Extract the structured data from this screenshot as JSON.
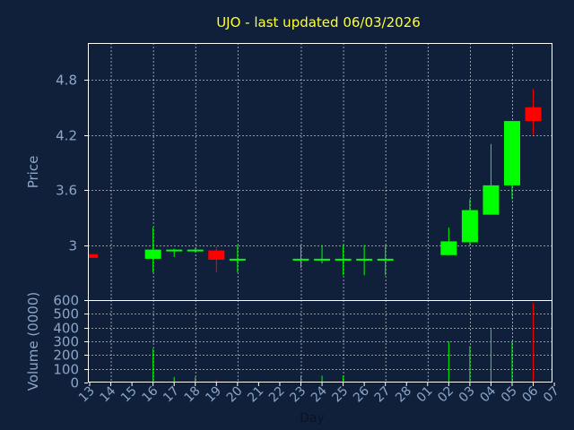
{
  "chart_data": [
    {
      "type": "candlestick",
      "title": "UJO - last updated 06/03/2026",
      "ylabel": "Price",
      "xlabel": "Day",
      "ylim": [
        2.4,
        5.2
      ],
      "yticks": [
        "3",
        "3.6",
        "4.2",
        "4.8"
      ],
      "ytick_values": [
        3.0,
        3.6,
        4.2,
        4.8
      ],
      "grid": true,
      "categories": [
        "13",
        "14",
        "15",
        "16",
        "17",
        "18",
        "19",
        "20",
        "21",
        "22",
        "23",
        "24",
        "25",
        "26",
        "27",
        "28",
        "01",
        "02",
        "03",
        "04",
        "05",
        "06",
        "07"
      ],
      "candles": [
        {
          "day": "13",
          "open": 2.9,
          "high": 2.9,
          "low": 2.86,
          "close": 2.86,
          "direction": "down"
        },
        {
          "day": "16",
          "open": 2.85,
          "high": 3.19,
          "low": 2.7,
          "close": 2.95,
          "direction": "up"
        },
        {
          "day": "17",
          "open": 2.94,
          "high": 2.96,
          "low": 2.87,
          "close": 2.95,
          "direction": "up"
        },
        {
          "day": "18",
          "open": 2.94,
          "high": 2.97,
          "low": 2.92,
          "close": 2.95,
          "direction": "up"
        },
        {
          "day": "19",
          "open": 2.94,
          "high": 2.98,
          "low": 2.7,
          "close": 2.84,
          "direction": "down"
        },
        {
          "day": "20",
          "open": 2.84,
          "high": 3.0,
          "low": 2.7,
          "close": 2.85,
          "direction": "up"
        },
        {
          "day": "23",
          "open": 2.84,
          "high": 3.0,
          "low": 2.75,
          "close": 2.85,
          "direction": "up"
        },
        {
          "day": "24",
          "open": 2.84,
          "high": 3.0,
          "low": 2.8,
          "close": 2.85,
          "direction": "up"
        },
        {
          "day": "25",
          "open": 2.84,
          "high": 3.0,
          "low": 2.67,
          "close": 2.85,
          "direction": "up"
        },
        {
          "day": "26",
          "open": 2.84,
          "high": 3.0,
          "low": 2.67,
          "close": 2.85,
          "direction": "up"
        },
        {
          "day": "27",
          "open": 2.84,
          "high": 3.0,
          "low": 2.67,
          "close": 2.85,
          "direction": "up"
        },
        {
          "day": "02",
          "open": 2.89,
          "high": 3.19,
          "low": 2.89,
          "close": 3.04,
          "direction": "up"
        },
        {
          "day": "03",
          "open": 3.03,
          "high": 3.5,
          "low": 3.0,
          "close": 3.38,
          "direction": "up"
        },
        {
          "day": "04",
          "open": 3.33,
          "high": 4.1,
          "low": 3.33,
          "close": 3.65,
          "direction": "up"
        },
        {
          "day": "05",
          "open": 3.65,
          "high": 4.35,
          "low": 3.5,
          "close": 4.35,
          "direction": "up"
        },
        {
          "day": "06",
          "open": 4.5,
          "high": 4.7,
          "low": 4.2,
          "close": 4.35,
          "direction": "down"
        }
      ]
    },
    {
      "type": "bar",
      "ylabel": "Volume (0000)",
      "ylim": [
        0,
        600
      ],
      "yticks": [
        "0",
        "100",
        "200",
        "300",
        "400",
        "500",
        "600"
      ],
      "ytick_values": [
        0,
        100,
        200,
        300,
        400,
        500,
        600
      ],
      "grid": true,
      "bars": [
        {
          "day": "16",
          "value": 245,
          "direction": "up"
        },
        {
          "day": "17",
          "value": 40,
          "direction": "up"
        },
        {
          "day": "18",
          "value": 40,
          "direction": "up"
        },
        {
          "day": "19",
          "value": 20,
          "direction": "down"
        },
        {
          "day": "23",
          "value": 50,
          "direction": "up"
        },
        {
          "day": "24",
          "value": 50,
          "direction": "up"
        },
        {
          "day": "25",
          "value": 50,
          "direction": "up"
        },
        {
          "day": "02",
          "value": 300,
          "direction": "up"
        },
        {
          "day": "03",
          "value": 265,
          "direction": "up"
        },
        {
          "day": "04",
          "value": 390,
          "direction": "up"
        },
        {
          "day": "05",
          "value": 295,
          "direction": "up"
        },
        {
          "day": "06",
          "value": 580,
          "direction": "down"
        }
      ]
    }
  ],
  "colors": {
    "background": "#10203a",
    "title": "#ffff33",
    "axis_text": "#8aa6c8",
    "grid": "#ffffff",
    "up": "#00ff00",
    "down": "#ff0000",
    "frame": "#ffffff"
  }
}
